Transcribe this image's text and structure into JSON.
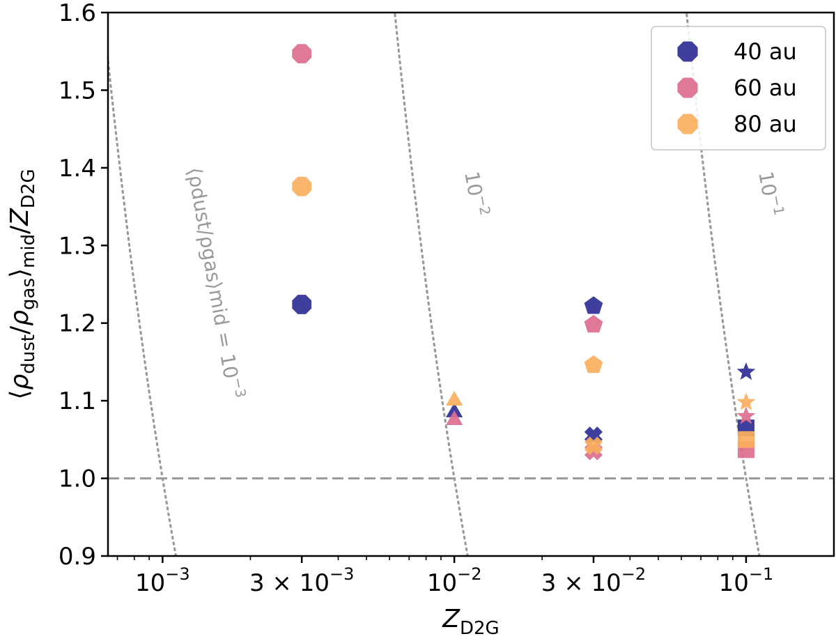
{
  "chart_data": {
    "type": "scatter",
    "x_scale": "log",
    "xlim": [
      0.00065,
      0.2
    ],
    "ylim": [
      0.9,
      1.6
    ],
    "xlabel": "Z_D2G",
    "ylabel": "⟨ρdust/ρgas⟩mid/ZD2G",
    "x_ticks": [
      {
        "value": 0.001,
        "label": "10^-3"
      },
      {
        "value": 0.003,
        "label": "3×10^-3"
      },
      {
        "value": 0.01,
        "label": "10^-2"
      },
      {
        "value": 0.03,
        "label": "3×10^-2"
      },
      {
        "value": 0.1,
        "label": "10^-1"
      }
    ],
    "y_ticks": [
      {
        "value": 0.9,
        "label": "0.9"
      },
      {
        "value": 1.0,
        "label": "1.0"
      },
      {
        "value": 1.1,
        "label": "1.1"
      },
      {
        "value": 1.2,
        "label": "1.2"
      },
      {
        "value": 1.3,
        "label": "1.3"
      },
      {
        "value": 1.4,
        "label": "1.4"
      },
      {
        "value": 1.5,
        "label": "1.5"
      },
      {
        "value": 1.6,
        "label": "1.6"
      }
    ],
    "reference_line": {
      "y": 1.0,
      "style": "dashed",
      "color": "#999999"
    },
    "contours": [
      {
        "level": 0.001,
        "label": "⟨ρdust/ρgas⟩mid = 10^-3"
      },
      {
        "level": 0.01,
        "label": "10^-2"
      },
      {
        "level": 0.1,
        "label": "10^-1"
      }
    ],
    "legend": {
      "placement": "top-right"
    },
    "series": [
      {
        "name": "40 au",
        "color": "#2e2e94",
        "points": [
          {
            "x": 0.003,
            "y": 1.224,
            "marker": "octagon"
          },
          {
            "x": 0.01,
            "y": 1.085,
            "marker": "triangle"
          },
          {
            "x": 0.03,
            "y": 1.222,
            "marker": "pentagon"
          },
          {
            "x": 0.03,
            "y": 1.055,
            "marker": "cross"
          },
          {
            "x": 0.1,
            "y": 1.137,
            "marker": "star"
          },
          {
            "x": 0.1,
            "y": 1.065,
            "marker": "square"
          }
        ]
      },
      {
        "name": "60 au",
        "color": "#dc6e8e",
        "points": [
          {
            "x": 0.003,
            "y": 1.547,
            "marker": "octagon"
          },
          {
            "x": 0.01,
            "y": 1.075,
            "marker": "triangle"
          },
          {
            "x": 0.03,
            "y": 1.198,
            "marker": "pentagon"
          },
          {
            "x": 0.03,
            "y": 1.035,
            "marker": "cross"
          },
          {
            "x": 0.1,
            "y": 1.08,
            "marker": "star"
          },
          {
            "x": 0.1,
            "y": 1.037,
            "marker": "square"
          }
        ]
      },
      {
        "name": "80 au",
        "color": "#fbaf5d",
        "points": [
          {
            "x": 0.003,
            "y": 1.376,
            "marker": "octagon"
          },
          {
            "x": 0.01,
            "y": 1.1,
            "marker": "triangle"
          },
          {
            "x": 0.03,
            "y": 1.146,
            "marker": "pentagon"
          },
          {
            "x": 0.03,
            "y": 1.042,
            "marker": "cross"
          },
          {
            "x": 0.1,
            "y": 1.098,
            "marker": "star"
          },
          {
            "x": 0.1,
            "y": 1.05,
            "marker": "square"
          }
        ]
      }
    ]
  }
}
